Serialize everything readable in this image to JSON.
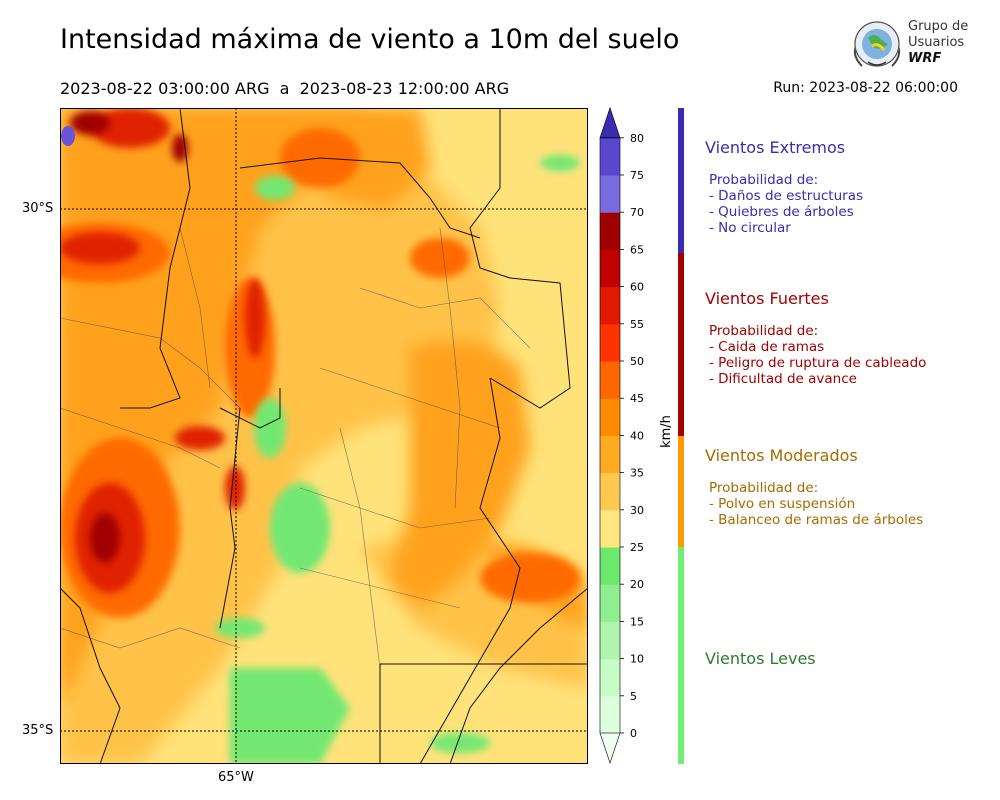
{
  "header": {
    "title": "Intensidad máxima de viento a 10m del suelo",
    "period": "2023-08-22 03:00:00 ARG  a  2023-08-23 12:00:00 ARG",
    "run": "Run: 2023-08-22 06:00:00"
  },
  "logo": {
    "line1": "Grupo de",
    "line2": "Usuarios",
    "line3": "WRF"
  },
  "map": {
    "lat_labels": [
      "30°S",
      "35°S"
    ],
    "lon_label": "65°W"
  },
  "colorbar": {
    "unit": "km/h",
    "ticks": [
      "0",
      "5",
      "10",
      "15",
      "20",
      "25",
      "30",
      "35",
      "40",
      "45",
      "50",
      "55",
      "60",
      "65",
      "70",
      "75",
      "80"
    ],
    "colors": [
      "#f0fff0",
      "#dcffdc",
      "#c6fcc6",
      "#aef5ae",
      "#8fee8f",
      "#6ce86c",
      "#ffe680",
      "#ffc950",
      "#ffaa20",
      "#ff8c00",
      "#ff6600",
      "#ff3300",
      "#e01a00",
      "#c00000",
      "#a00000",
      "#7b6be0",
      "#5b47cf",
      "#3a2bb0"
    ]
  },
  "categories": [
    {
      "title": "Vientos Extremos",
      "color": "#3a2bb0",
      "lines": [
        "Probabilidad de:",
        "- Daños de estructuras",
        "- Quiebres de árboles",
        "- No circular"
      ]
    },
    {
      "title": "Vientos Fuertes",
      "color": "#a50000",
      "lines": [
        "Probabilidad de:",
        "- Caida de ramas",
        "- Peligro de ruptura de cableado",
        "- Dificultad de avance"
      ]
    },
    {
      "title": "Vientos Moderados",
      "color": "#a86a00",
      "lines": [
        "Probabilidad de:",
        "- Polvo en suspensión",
        "- Balanceo de ramas de árboles"
      ]
    },
    {
      "title": "Vientos Leves",
      "color": "#2e7d2e",
      "lines": []
    }
  ]
}
